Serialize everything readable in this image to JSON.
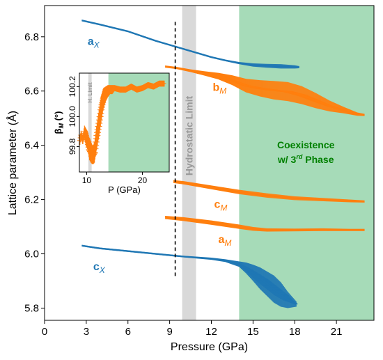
{
  "chart_data": [
    {
      "type": "scatter",
      "title": "",
      "xlabel": "Pressure (GPa)",
      "ylabel": "Lattice parameter (Å)",
      "xlim": [
        0,
        23.7
      ],
      "ylim": [
        5.755,
        6.915
      ],
      "xticks": [
        0,
        3,
        6,
        9,
        12,
        15,
        18,
        21
      ],
      "yticks": [
        5.8,
        6.0,
        6.2,
        6.4,
        6.6,
        6.8
      ],
      "grid": false,
      "regions": [
        {
          "label": "Hydrostatic Limit",
          "x0": 9.9,
          "x1": 10.9,
          "color": "#d9d9d9"
        },
        {
          "label": "Coexistence w/ 3rd Phase",
          "x0": 14.0,
          "x1": 23.7,
          "color": "#a6dbb8"
        }
      ],
      "vline": {
        "x": 9.4,
        "style": "dashed"
      },
      "annotations": {
        "hydrostatic": "Hydrostatic Limit",
        "coexistence_line1": "Coexistence",
        "coexistence_w": "w/ 3",
        "coexistence_sup": "rd",
        "coexistence_phase": " Phase",
        "color": "#008000"
      },
      "series": [
        {
          "name": "aX",
          "label_main": "a",
          "label_sub": "X",
          "color": "#1f77b4",
          "x": [
            2.7,
            4,
            6,
            8,
            9,
            10,
            11,
            12,
            13,
            14,
            15,
            16,
            17,
            18,
            18.3
          ],
          "y": [
            6.86,
            6.845,
            6.82,
            6.785,
            6.77,
            6.755,
            6.74,
            6.725,
            6.713,
            6.703,
            6.696,
            6.693,
            6.691,
            6.689,
            6.688
          ],
          "err": [
            0.003,
            0.003,
            0.003,
            0.003,
            0.003,
            0.003,
            0.003,
            0.003,
            0.003,
            0.004,
            0.006,
            0.007,
            0.008,
            0.006,
            0.004
          ]
        },
        {
          "name": "bM",
          "label_main": "b",
          "label_sub": "M",
          "color": "#ff7f0e",
          "x": [
            8.7,
            9.5,
            10.5,
            11.5,
            12.5,
            13.5,
            14.5,
            15.5,
            16.5,
            17.5,
            18.5,
            19.5,
            20.5,
            21.5,
            22.5,
            23.0
          ],
          "y": [
            6.69,
            6.685,
            6.675,
            6.665,
            6.655,
            6.64,
            6.62,
            6.61,
            6.603,
            6.598,
            6.585,
            6.565,
            6.545,
            6.53,
            6.515,
            6.512
          ],
          "err": [
            0.004,
            0.004,
            0.005,
            0.008,
            0.012,
            0.018,
            0.025,
            0.03,
            0.034,
            0.035,
            0.033,
            0.028,
            0.02,
            0.012,
            0.006,
            0.004
          ]
        },
        {
          "name": "cM",
          "label_main": "c",
          "label_sub": "M",
          "color": "#ff7f0e",
          "x": [
            8.7,
            10,
            12,
            14,
            16,
            18,
            20,
            22,
            23.0
          ],
          "y": [
            6.27,
            6.262,
            6.245,
            6.228,
            6.215,
            6.205,
            6.2,
            6.195,
            6.193
          ],
          "err": [
            0.005,
            0.006,
            0.007,
            0.008,
            0.008,
            0.007,
            0.006,
            0.005,
            0.004
          ]
        },
        {
          "name": "aM",
          "label_main": "a",
          "label_sub": "M",
          "color": "#ff7f0e",
          "x": [
            8.7,
            10,
            12,
            14,
            15,
            16,
            18,
            20,
            22,
            23.0
          ],
          "y": [
            6.134,
            6.128,
            6.115,
            6.1,
            6.092,
            6.088,
            6.088,
            6.089,
            6.088,
            6.088
          ],
          "err": [
            0.006,
            0.007,
            0.008,
            0.008,
            0.007,
            0.006,
            0.005,
            0.005,
            0.004,
            0.004
          ]
        },
        {
          "name": "cX",
          "label_main": "c",
          "label_sub": "X",
          "color": "#1f77b4",
          "x": [
            2.7,
            4,
            6,
            8,
            10,
            12,
            13,
            14,
            14.5,
            15,
            15.5,
            16,
            16.5,
            17,
            17.5,
            18.1
          ],
          "y": [
            6.03,
            6.02,
            6.01,
            6.0,
            5.99,
            5.982,
            5.975,
            5.962,
            5.948,
            5.93,
            5.91,
            5.89,
            5.87,
            5.85,
            5.83,
            5.815
          ],
          "err": [
            0.003,
            0.003,
            0.003,
            0.003,
            0.003,
            0.004,
            0.005,
            0.01,
            0.02,
            0.03,
            0.04,
            0.045,
            0.05,
            0.045,
            0.03,
            0.01
          ]
        }
      ]
    },
    {
      "type": "scatter",
      "title": "",
      "xlabel": "P (GPa)",
      "ylabel": "β",
      "ylabel_sub": "M",
      "ylabel_unit": " (°)",
      "xlim": [
        8.7,
        24.8
      ],
      "ylim": [
        99.63,
        100.29
      ],
      "xticks": [
        10,
        20
      ],
      "ytick_values": [
        99.8,
        100.0,
        100.2
      ],
      "ytick_labels": [
        "99.8",
        "100.0",
        "100.2"
      ],
      "regions": [
        {
          "label": "H. Limit",
          "x0": 10.3,
          "x1": 10.9,
          "color": "#d9d9d9"
        },
        {
          "label": "",
          "x0": 13.9,
          "x1": 24.8,
          "color": "#a6dbb8"
        }
      ],
      "inset_region_label": "H. Limit",
      "series": [
        {
          "name": "betaM",
          "color": "#ff7f0e",
          "x": [
            8.8,
            9.0,
            9.3,
            9.6,
            9.9,
            10.2,
            10.5,
            10.8,
            11.1,
            11.4,
            11.8,
            12.2,
            12.6,
            13.0,
            13.4,
            13.8,
            14.2,
            14.6,
            15.0,
            16,
            17,
            18,
            19,
            20,
            21,
            22,
            23,
            24
          ],
          "y": [
            99.84,
            99.88,
            99.84,
            99.9,
            99.86,
            99.84,
            99.78,
            99.76,
            99.74,
            99.76,
            99.86,
            99.95,
            100.05,
            100.12,
            100.15,
            100.17,
            100.18,
            100.18,
            100.19,
            100.18,
            100.18,
            100.2,
            100.18,
            100.19,
            100.21,
            100.2,
            100.22,
            100.22
          ],
          "err": [
            0.03,
            0.03,
            0.03,
            0.04,
            0.06,
            0.06,
            0.07,
            0.07,
            0.06,
            0.07,
            0.08,
            0.09,
            0.09,
            0.07,
            0.05,
            0.04,
            0.03,
            0.03,
            0.02,
            0.02,
            0.02,
            0.02,
            0.02,
            0.02,
            0.02,
            0.02,
            0.02,
            0.02
          ]
        }
      ]
    }
  ]
}
